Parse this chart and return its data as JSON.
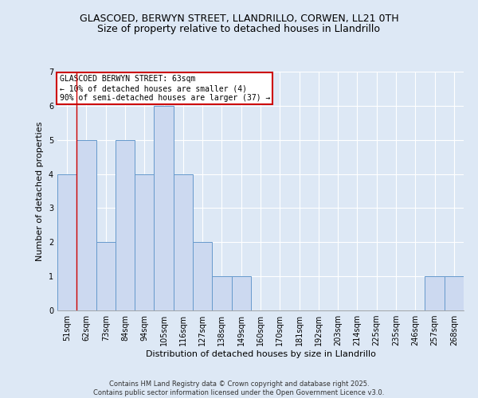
{
  "title_line1": "GLASCOED, BERWYN STREET, LLANDRILLO, CORWEN, LL21 0TH",
  "title_line2": "Size of property relative to detached houses in Llandrillo",
  "xlabel": "Distribution of detached houses by size in Llandrillo",
  "ylabel": "Number of detached properties",
  "categories": [
    "51sqm",
    "62sqm",
    "73sqm",
    "84sqm",
    "94sqm",
    "105sqm",
    "116sqm",
    "127sqm",
    "138sqm",
    "149sqm",
    "160sqm",
    "170sqm",
    "181sqm",
    "192sqm",
    "203sqm",
    "214sqm",
    "225sqm",
    "235sqm",
    "246sqm",
    "257sqm",
    "268sqm"
  ],
  "bar_heights": [
    4,
    5,
    2,
    5,
    4,
    6,
    4,
    2,
    1,
    1,
    0,
    0,
    0,
    0,
    0,
    0,
    0,
    0,
    0,
    1,
    1
  ],
  "bar_color": "#ccd9f0",
  "bar_edge_color": "#6699cc",
  "red_line_index": 1,
  "ylim": [
    0,
    7
  ],
  "yticks": [
    0,
    1,
    2,
    3,
    4,
    5,
    6,
    7
  ],
  "annotation_text": "GLASCOED BERWYN STREET: 63sqm\n← 10% of detached houses are smaller (4)\n90% of semi-detached houses are larger (37) →",
  "annotation_box_facecolor": "#ffffff",
  "annotation_box_edgecolor": "#cc0000",
  "footer_text": "Contains HM Land Registry data © Crown copyright and database right 2025.\nContains public sector information licensed under the Open Government Licence v3.0.",
  "background_color": "#dde8f5",
  "grid_color": "#ffffff",
  "title_fontsize": 9,
  "subtitle_fontsize": 9,
  "xlabel_fontsize": 8,
  "ylabel_fontsize": 8,
  "tick_fontsize": 7,
  "footer_fontsize": 6
}
